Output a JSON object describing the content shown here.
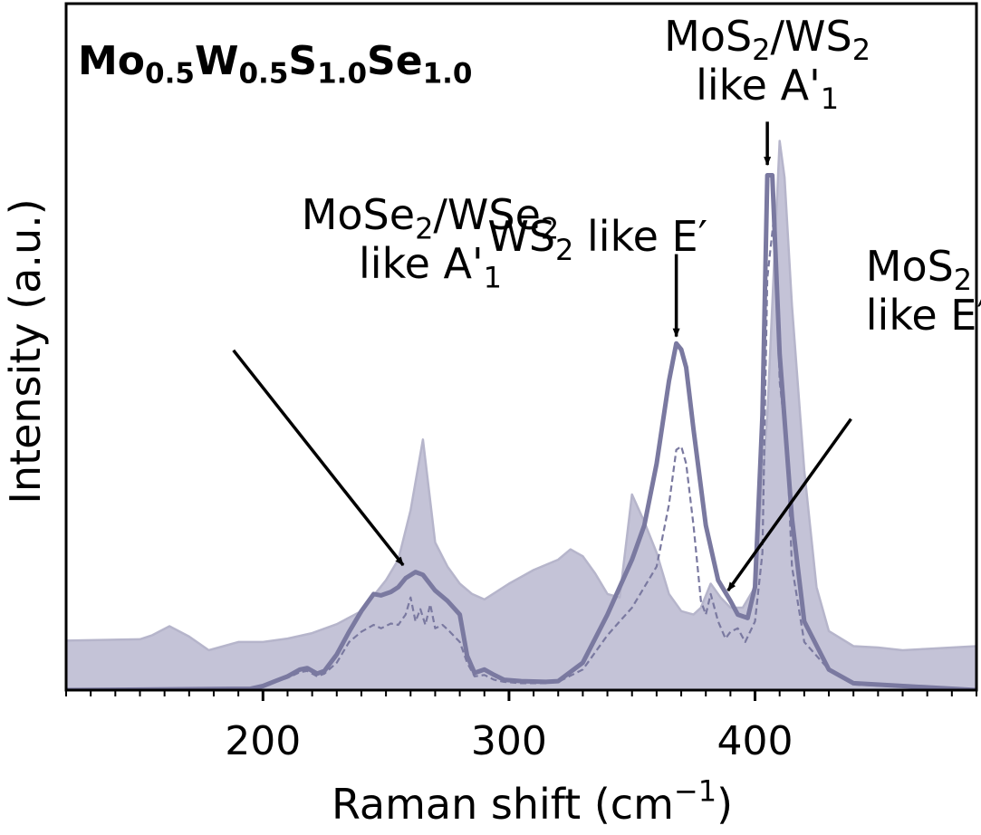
{
  "chart_data": {
    "type": "line",
    "title_parts": [
      {
        "base": "Mo",
        "sub": "0.5"
      },
      {
        "base": "W",
        "sub": "0.5"
      },
      {
        "base": "S",
        "sub": "1.0"
      },
      {
        "base": "Se",
        "sub": "1.0"
      }
    ],
    "xlabel": "Raman shift (cm",
    "xlabel_sup": "−1",
    "xlabel_end": ")",
    "ylabel": "Intensity (a.u.)",
    "xlim": [
      120,
      490
    ],
    "ylim": [
      0,
      1.0
    ],
    "x_ticks": [
      200,
      300,
      400
    ],
    "x_tick_labels": [
      "200",
      "300",
      "400"
    ],
    "x_minor_step": 10,
    "grid": false,
    "legend": "none",
    "colors": {
      "fill": "#c4c3d7",
      "fill_edge": "#b6b5cb",
      "line": "#7a79a0",
      "dashed": "#7a79a0",
      "arrow": "#000000"
    },
    "series": [
      {
        "style": "filled",
        "x": [
          120,
          150,
          155,
          162,
          170,
          178,
          190,
          200,
          210,
          220,
          230,
          240,
          250,
          255,
          260,
          265,
          270,
          275,
          280,
          285,
          290,
          300,
          310,
          320,
          325,
          330,
          335,
          340,
          345,
          350,
          355,
          360,
          365,
          370,
          375,
          378,
          382,
          386,
          390,
          395,
          400,
          405,
          410,
          412,
          415,
          420,
          425,
          430,
          440,
          450,
          460,
          470,
          480,
          490
        ],
        "y": [
          0.072,
          0.074,
          0.08,
          0.093,
          0.078,
          0.058,
          0.07,
          0.07,
          0.075,
          0.083,
          0.096,
          0.115,
          0.16,
          0.19,
          0.262,
          0.365,
          0.215,
          0.18,
          0.155,
          0.14,
          0.132,
          0.155,
          0.175,
          0.19,
          0.205,
          0.195,
          0.17,
          0.14,
          0.135,
          0.285,
          0.245,
          0.2,
          0.14,
          0.115,
          0.11,
          0.12,
          0.155,
          0.135,
          0.12,
          0.12,
          0.15,
          0.4,
          0.8,
          0.747,
          0.56,
          0.32,
          0.15,
          0.086,
          0.064,
          0.062,
          0.058,
          0.06,
          0.062,
          0.064
        ]
      },
      {
        "style": "solid",
        "x": [
          120,
          195,
          200,
          205,
          210,
          215,
          218,
          222,
          225,
          230,
          235,
          240,
          245,
          248,
          252,
          255,
          258,
          262,
          265,
          270,
          275,
          280,
          283,
          286,
          290,
          294,
          298,
          305,
          315,
          320,
          330,
          340,
          345,
          350,
          355,
          360,
          365,
          368,
          370,
          372,
          375,
          380,
          385,
          390,
          393,
          397,
          400,
          403,
          405,
          407,
          410,
          415,
          420,
          430,
          440,
          490
        ],
        "y": [
          0.0,
          0.002,
          0.006,
          0.013,
          0.02,
          0.03,
          0.032,
          0.024,
          0.028,
          0.052,
          0.085,
          0.115,
          0.14,
          0.138,
          0.143,
          0.15,
          0.163,
          0.172,
          0.168,
          0.145,
          0.13,
          0.11,
          0.05,
          0.025,
          0.03,
          0.022,
          0.015,
          0.013,
          0.012,
          0.013,
          0.04,
          0.11,
          0.15,
          0.19,
          0.24,
          0.33,
          0.45,
          0.505,
          0.496,
          0.47,
          0.38,
          0.24,
          0.16,
          0.13,
          0.11,
          0.105,
          0.15,
          0.4,
          0.75,
          0.75,
          0.49,
          0.25,
          0.1,
          0.03,
          0.01,
          0.0
        ]
      },
      {
        "style": "dashed",
        "x": [
          120,
          195,
          200,
          205,
          210,
          215,
          218,
          222,
          225,
          230,
          235,
          240,
          245,
          248,
          252,
          255,
          258,
          260,
          262,
          264,
          266,
          268,
          270,
          273,
          276,
          280,
          283,
          286,
          290,
          294,
          298,
          305,
          315,
          320,
          330,
          340,
          345,
          350,
          355,
          360,
          365,
          368,
          370,
          372,
          375,
          378,
          380,
          382,
          385,
          388,
          390,
          393,
          396,
          400,
          403,
          405,
          408,
          410,
          413,
          415,
          420,
          430,
          440,
          490
        ],
        "y": [
          0.0,
          0.002,
          0.005,
          0.012,
          0.018,
          0.026,
          0.028,
          0.02,
          0.024,
          0.04,
          0.07,
          0.085,
          0.095,
          0.09,
          0.097,
          0.095,
          0.11,
          0.135,
          0.1,
          0.118,
          0.095,
          0.125,
          0.09,
          0.095,
          0.085,
          0.07,
          0.04,
          0.02,
          0.022,
          0.015,
          0.012,
          0.01,
          0.01,
          0.012,
          0.03,
          0.08,
          0.1,
          0.12,
          0.15,
          0.18,
          0.27,
          0.35,
          0.355,
          0.33,
          0.24,
          0.13,
          0.11,
          0.14,
          0.1,
          0.075,
          0.085,
          0.09,
          0.07,
          0.1,
          0.2,
          0.6,
          0.7,
          0.45,
          0.35,
          0.18,
          0.07,
          0.03,
          0.008,
          0.0
        ]
      }
    ],
    "annotations": [
      {
        "label_lines": [
          [
            {
              "t": "MoSe"
            },
            {
              "t": "2",
              "sub": true
            },
            {
              "t": "/WSe"
            },
            {
              "t": "2",
              "sub": true
            }
          ],
          [
            {
              "t": "like A'"
            },
            {
              "t": "1",
              "sub": true
            }
          ]
        ],
        "text_x": 268,
        "text_y": 0.6,
        "align": "middle",
        "arrow_from": [
          188,
          0.495
        ],
        "arrow_to": [
          257,
          0.182
        ]
      },
      {
        "label_lines": [
          [
            {
              "t": "WS"
            },
            {
              "t": "2",
              "sub": true
            },
            {
              "t": " like E′"
            }
          ]
        ],
        "text_x": 336,
        "text_y": 0.64,
        "align": "middle",
        "arrow_from": [
          368,
          0.635
        ],
        "arrow_to": [
          368,
          0.515
        ]
      },
      {
        "label_lines": [
          [
            {
              "t": "MoS"
            },
            {
              "t": "2",
              "sub": true
            },
            {
              "t": "/WS"
            },
            {
              "t": "2",
              "sub": true
            }
          ],
          [
            {
              "t": "like A'"
            },
            {
              "t": "1",
              "sub": true
            }
          ]
        ],
        "text_x": 405,
        "text_y": 0.86,
        "align": "middle",
        "arrow_from": [
          405,
          0.828
        ],
        "arrow_to": [
          405,
          0.765
        ]
      },
      {
        "label_lines": [
          [
            {
              "t": "MoS"
            },
            {
              "t": "2",
              "sub": true
            }
          ],
          [
            {
              "t": "like E′"
            }
          ]
        ],
        "text_x": 445,
        "text_y": 0.525,
        "align": "start",
        "arrow_from": [
          439,
          0.395
        ],
        "arrow_to": [
          389,
          0.145
        ]
      }
    ]
  }
}
